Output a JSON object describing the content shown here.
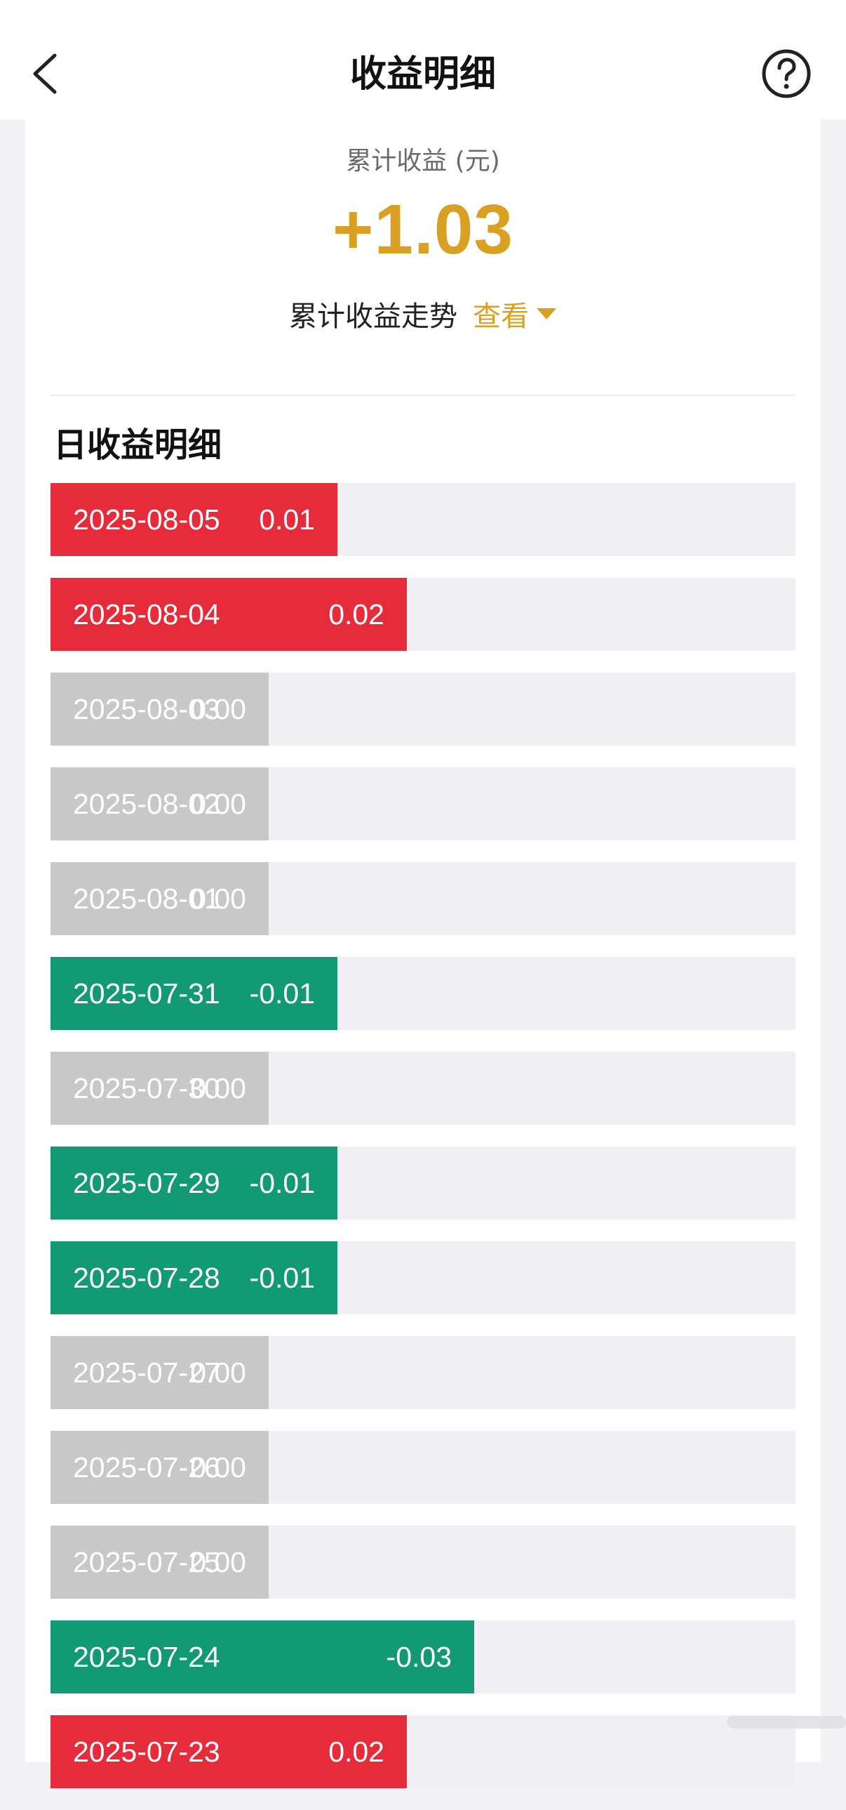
{
  "nav": {
    "title": "收益明细",
    "back_icon": "chevron-left-icon",
    "help_icon": "question-circle-icon"
  },
  "summary": {
    "label": "累计收益 (元)",
    "value": "+1.03",
    "trend_label": "累计收益走势",
    "trend_link": "查看",
    "value_color": "#d9a023"
  },
  "section_title": "日收益明细",
  "colors": {
    "positive": "#e62b3b",
    "negative": "#119a74",
    "zero": "#c8c8c8",
    "track": "#f0f0f4"
  },
  "rows": [
    {
      "date": "2025-08-05",
      "value": "0.01",
      "sign": "positive",
      "fill": 0.385
    },
    {
      "date": "2025-08-04",
      "value": "0.02",
      "sign": "positive",
      "fill": 0.478
    },
    {
      "date": "2025-08-03",
      "value": "0.00",
      "sign": "zero",
      "fill": 0.293
    },
    {
      "date": "2025-08-02",
      "value": "0.00",
      "sign": "zero",
      "fill": 0.293
    },
    {
      "date": "2025-08-01",
      "value": "0.00",
      "sign": "zero",
      "fill": 0.293
    },
    {
      "date": "2025-07-31",
      "value": "-0.01",
      "sign": "negative",
      "fill": 0.385
    },
    {
      "date": "2025-07-30",
      "value": "0.00",
      "sign": "zero",
      "fill": 0.293
    },
    {
      "date": "2025-07-29",
      "value": "-0.01",
      "sign": "negative",
      "fill": 0.385
    },
    {
      "date": "2025-07-28",
      "value": "-0.01",
      "sign": "negative",
      "fill": 0.385
    },
    {
      "date": "2025-07-27",
      "value": "0.00",
      "sign": "zero",
      "fill": 0.293
    },
    {
      "date": "2025-07-26",
      "value": "0.00",
      "sign": "zero",
      "fill": 0.293
    },
    {
      "date": "2025-07-25",
      "value": "0.00",
      "sign": "zero",
      "fill": 0.293
    },
    {
      "date": "2025-07-24",
      "value": "-0.03",
      "sign": "negative",
      "fill": 0.569
    },
    {
      "date": "2025-07-23",
      "value": "0.02",
      "sign": "positive",
      "fill": 0.478
    }
  ]
}
